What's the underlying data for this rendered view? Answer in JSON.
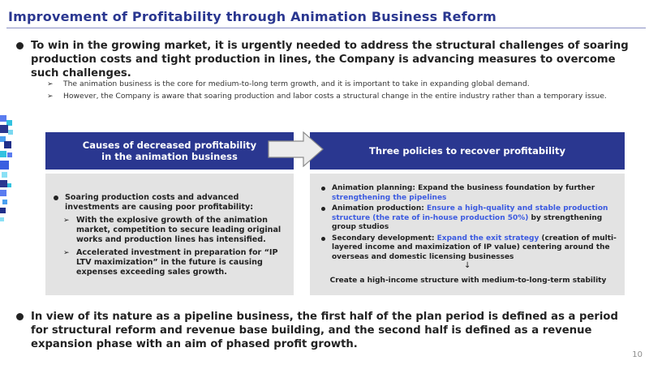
{
  "title": "Improvement of Profitability through Animation Business Reform",
  "bullet1": "To win in the growing market, it is urgently needed to address the structural challenges of soaring production costs and tight production in lines, the Company is advancing measures to overcome such challenges.",
  "sub_bullets": [
    "The animation business is the core for medium-to-long term growth, and it is important to take in expanding global demand.",
    "However, the Company is aware that soaring production and labor costs a structural change in the entire industry  rather than a temporary issue."
  ],
  "left_header": {
    "line1": "Causes of decreased profitability",
    "line2": "in the animation business"
  },
  "right_header": "Three policies to recover profitability",
  "left_content": {
    "main": "Soaring production costs and advanced investments are causing poor profitability:",
    "subs": [
      "With the explosive growth of the animation market, competition to secure leading original works and production lines has intensified.",
      "Accelerated investment in preparation for  “IP LTV maximization” in the future is causing expenses exceeding sales growth."
    ]
  },
  "right_content": {
    "items": [
      {
        "prefix": "Animation planning: Expand the business foundation by further ",
        "highlight": "strengthening the pipelines",
        "suffix": ""
      },
      {
        "prefix": "Animation production: ",
        "highlight": "Ensure a high-quality and stable production structure (the rate of in-house production 50%)",
        "suffix": " by strengthening group studios"
      },
      {
        "prefix": "Secondary development: ",
        "highlight": "Expand the exit strategy",
        "suffix": " (creation of multi-layered income and maximization of IP value) centering around the overseas and domestic licensing businesses"
      }
    ],
    "arrow": "↓",
    "conclusion": "Create a high-income structure with medium-to-long-term stability"
  },
  "bullet2": "In view of its nature as a pipeline business, the first half of the plan period is defined as a period for structural reform and revenue base building, and the second half is defined as a revenue expansion phase with an aim of phased profit growth.",
  "page_number": "10",
  "colors": {
    "title": "#2a3790",
    "header_bg": "#2a3790",
    "box_bg": "#e3e3e3",
    "highlight": "#3b5ae0"
  },
  "icons": [
    "bullet-dot-icon",
    "chevron-right-icon",
    "right-arrow-icon",
    "down-arrow-icon"
  ]
}
